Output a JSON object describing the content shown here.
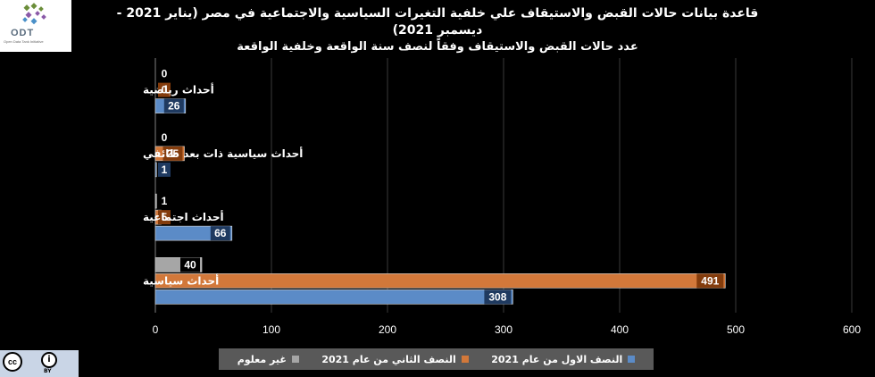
{
  "logo": {
    "text": "ODT",
    "tagline": "Open Data Tank Initiative"
  },
  "license": {
    "cc": "cc",
    "by_icon": "i",
    "by": "BY"
  },
  "colors": {
    "background": "#000000",
    "gridline": "#3a3a3a",
    "axis_text": "#ffffff",
    "first_half": "#5b8bc7",
    "second_half": "#d2783a",
    "unknown": "#a6a6a6",
    "label_first_half": "#1f3a60",
    "label_second_half": "#843c0c",
    "label_unknown": "#000000"
  },
  "chart_data": {
    "type": "bar",
    "orientation": "horizontal",
    "title": "قاعدة بيانات حالات القبض والاستيقاف علي خلفية التغيرات السياسية والاجتماعية في مصر (يناير 2021 - ديسمبر 2021)",
    "subtitle": "عدد حالات القبض والاستيقاف وفقاً لنصف سنة الواقعة وخلفية الواقعة",
    "categories": [
      "أحداث رياضية",
      "أحداث سياسية ذات بعد طائفي",
      "أحداث اجتماعية",
      "أحداث سياسية"
    ],
    "series": [
      {
        "name": "غير معلوم",
        "color": "#a6a6a6",
        "label_bg": "#000000",
        "values": [
          0,
          0,
          1,
          40
        ]
      },
      {
        "name": "النصف الثاني من عام 2021",
        "color": "#d2783a",
        "label_bg": "#843c0c",
        "values": [
          0,
          25,
          5,
          491
        ]
      },
      {
        "name": "النصف الاول من عام 2021",
        "color": "#5b8bc7",
        "label_bg": "#1f3a60",
        "values": [
          26,
          1,
          66,
          308
        ]
      }
    ],
    "xlim": [
      0,
      600
    ],
    "xticks": [
      0,
      100,
      200,
      300,
      400,
      500,
      600
    ],
    "grid": true,
    "legend_position": "bottom"
  }
}
